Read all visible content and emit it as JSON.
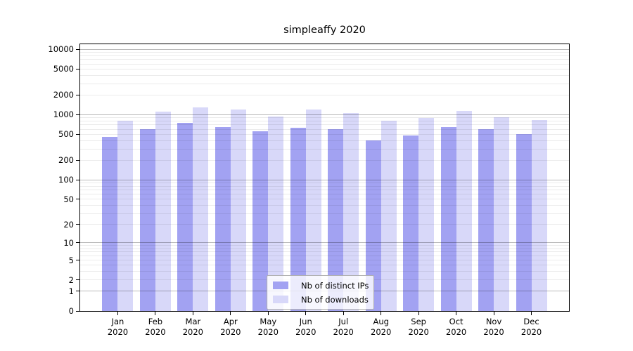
{
  "chart_data": {
    "type": "bar",
    "title": "simpleaffy 2020",
    "year": "2020",
    "categories": [
      "Jan",
      "Feb",
      "Mar",
      "Apr",
      "May",
      "Jun",
      "Jul",
      "Aug",
      "Sep",
      "Oct",
      "Nov",
      "Dec"
    ],
    "series": [
      {
        "name": "Nb of distinct IPs",
        "color": "#a2a2f2",
        "values": [
          464,
          604,
          760,
          645,
          556,
          640,
          598,
          410,
          483,
          645,
          604,
          503
        ]
      },
      {
        "name": "Nb of downloads",
        "color": "#d8d8f9",
        "values": [
          805,
          1125,
          1295,
          1210,
          948,
          1190,
          1055,
          818,
          895,
          1160,
          910,
          824
        ]
      }
    ],
    "yscale": "log1p",
    "ylim": [
      0,
      12000
    ],
    "ytick_values": [
      0,
      1,
      2,
      5,
      10,
      20,
      50,
      100,
      200,
      500,
      1000,
      2000,
      5000,
      10000
    ],
    "ytick_labels": [
      "0",
      "1",
      "2",
      "5",
      "10",
      "20",
      "50",
      "100",
      "200",
      "500",
      "1000",
      "2000",
      "5000",
      "10000"
    ],
    "grid": {
      "on": true,
      "major_values": [
        1,
        10,
        100,
        1000,
        10000
      ],
      "minor_mantissas": [
        2,
        3,
        4,
        5,
        6,
        7,
        8,
        9
      ],
      "minor_decades": [
        1,
        10,
        100,
        1000
      ]
    },
    "legend_position": "lower center",
    "colors": {
      "major_grid": "rgba(0,0,0,0.27)",
      "minor_grid": "rgba(0,0,0,0.08)",
      "axis": "#000000",
      "background": "#ffffff"
    }
  }
}
